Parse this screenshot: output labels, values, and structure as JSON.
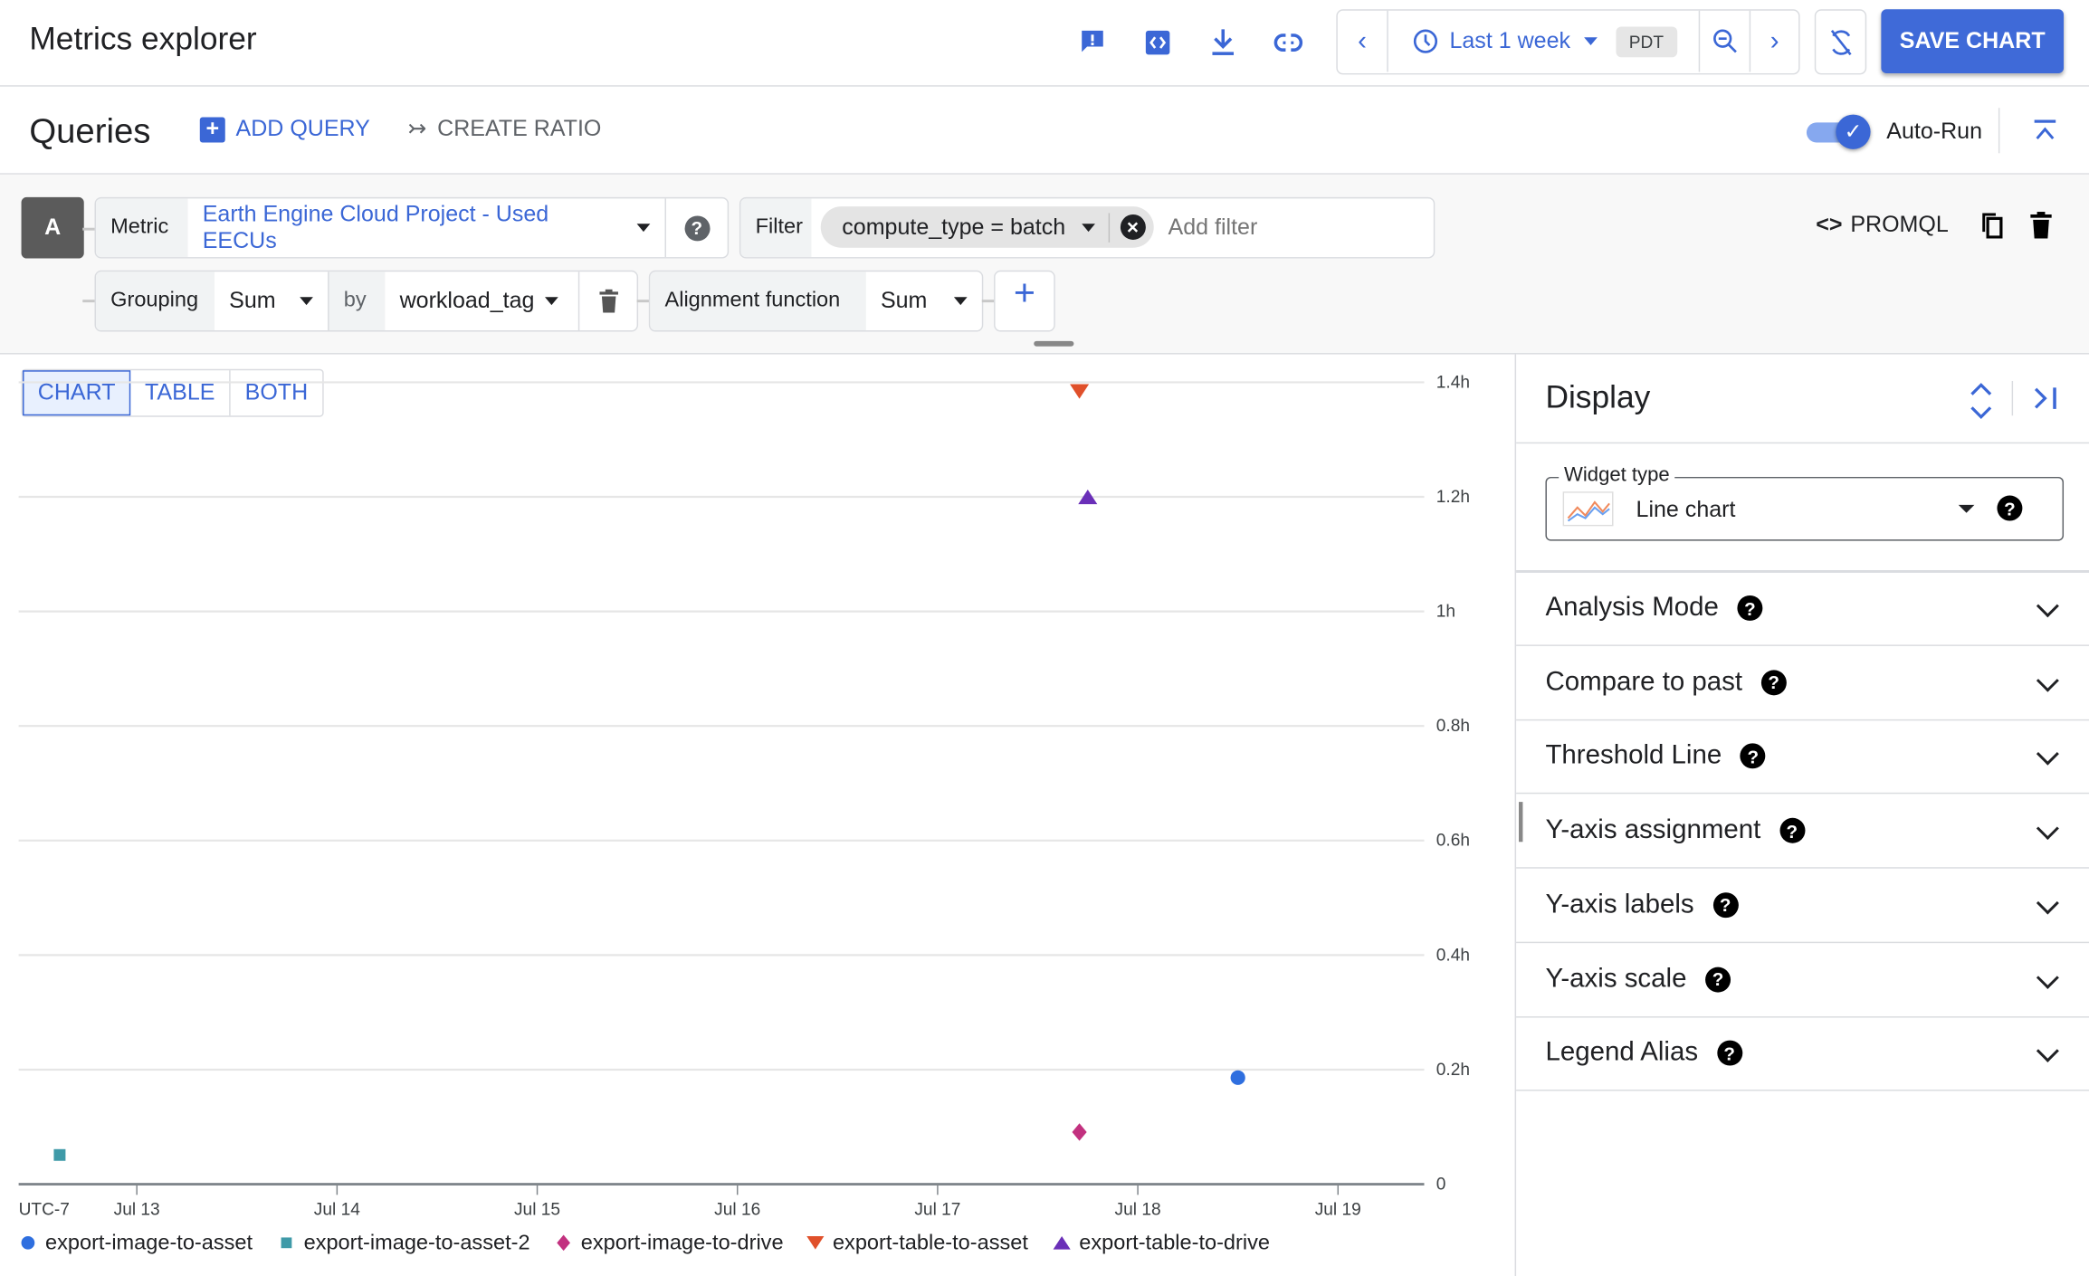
{
  "header": {
    "title": "Metrics explorer",
    "icons": [
      "feedback-icon",
      "embed-code-icon",
      "download-icon",
      "link-icon"
    ],
    "time_range": "Last 1 week",
    "timezone": "PDT",
    "save_label": "SAVE CHART"
  },
  "queries": {
    "title": "Queries",
    "add_query": "ADD QUERY",
    "create_ratio": "CREATE RATIO",
    "auto_run": "Auto-Run",
    "auto_run_on": true
  },
  "query": {
    "letter": "A",
    "metric_label": "Metric",
    "metric_value": "Earth Engine Cloud Project - Used EECUs",
    "filter_label": "Filter",
    "filter_chip": "compute_type = batch",
    "filter_placeholder": "Add filter",
    "promql": "PROMQL",
    "grouping_label": "Grouping",
    "grouping_value": "Sum",
    "by_label": "by",
    "by_value": "workload_tag",
    "alignment_label": "Alignment function",
    "alignment_value": "Sum"
  },
  "view_tabs": [
    {
      "label": "CHART",
      "selected": true
    },
    {
      "label": "TABLE"
    },
    {
      "label": "BOTH"
    }
  ],
  "display": {
    "title": "Display",
    "widget_type_label": "Widget type",
    "widget_type_value": "Line chart",
    "sections": [
      "Analysis Mode",
      "Compare to past",
      "Threshold Line",
      "Y-axis assignment",
      "Y-axis labels",
      "Y-axis scale",
      "Legend Alias"
    ]
  },
  "chart_data": {
    "type": "scatter",
    "timezone_label": "UTC-7",
    "x_ticks": [
      "Jul 13",
      "Jul 14",
      "Jul 15",
      "Jul 16",
      "Jul 17",
      "Jul 18",
      "Jul 19"
    ],
    "xlim": [
      "Jul 12 09:50",
      "Jul 19 10:20"
    ],
    "y_ticks": [
      "0",
      "0.2h",
      "0.4h",
      "0.6h",
      "0.8h",
      "1h",
      "1.2h",
      "1.4h"
    ],
    "ylim": [
      0,
      1.4
    ],
    "grid": true,
    "legend": "bottom",
    "series": [
      {
        "name": "export-image-to-asset",
        "color": "#2f6fdf",
        "marker": "circle",
        "points": [
          {
            "x": "Jul 18 12:00",
            "y": 0.186
          }
        ]
      },
      {
        "name": "export-image-to-asset-2",
        "color": "#3f9aa8",
        "marker": "square",
        "points": [
          {
            "x": "Jul 12 14:45",
            "y": 0.051
          }
        ]
      },
      {
        "name": "export-image-to-drive",
        "color": "#c2317f",
        "marker": "diamond",
        "points": [
          {
            "x": "Jul 17 17:00",
            "y": 0.091
          }
        ]
      },
      {
        "name": "export-table-to-asset",
        "color": "#e0502a",
        "marker": "triangle-down",
        "points": [
          {
            "x": "Jul 17 17:00",
            "y": 1.384
          }
        ]
      },
      {
        "name": "export-table-to-drive",
        "color": "#6a2fb8",
        "marker": "triangle-up",
        "points": [
          {
            "x": "Jul 17 18:00",
            "y": 1.2
          }
        ]
      }
    ]
  }
}
